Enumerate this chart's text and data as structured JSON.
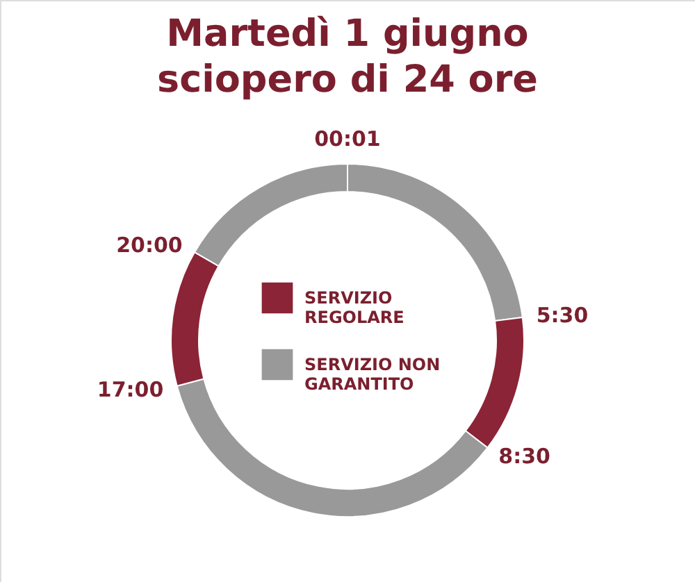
{
  "chart_data": {
    "type": "donut",
    "title": "Martedì 1 giugno\nsciopero di 24 ore",
    "categories": [
      "SERVIZIO NON GARANTITO",
      "SERVIZIO REGOLARE",
      null,
      null,
      null
    ],
    "values": [
      22.92,
      12.5,
      35.41,
      12.5,
      16.67
    ],
    "colors": [
      "#999999",
      "#8b2436",
      "#999999",
      "#8b2436",
      "#999999"
    ],
    "annotations": [
      "00:01",
      "5:30",
      "8:30",
      "17:00",
      "20:00"
    ],
    "legend": "center"
  }
}
